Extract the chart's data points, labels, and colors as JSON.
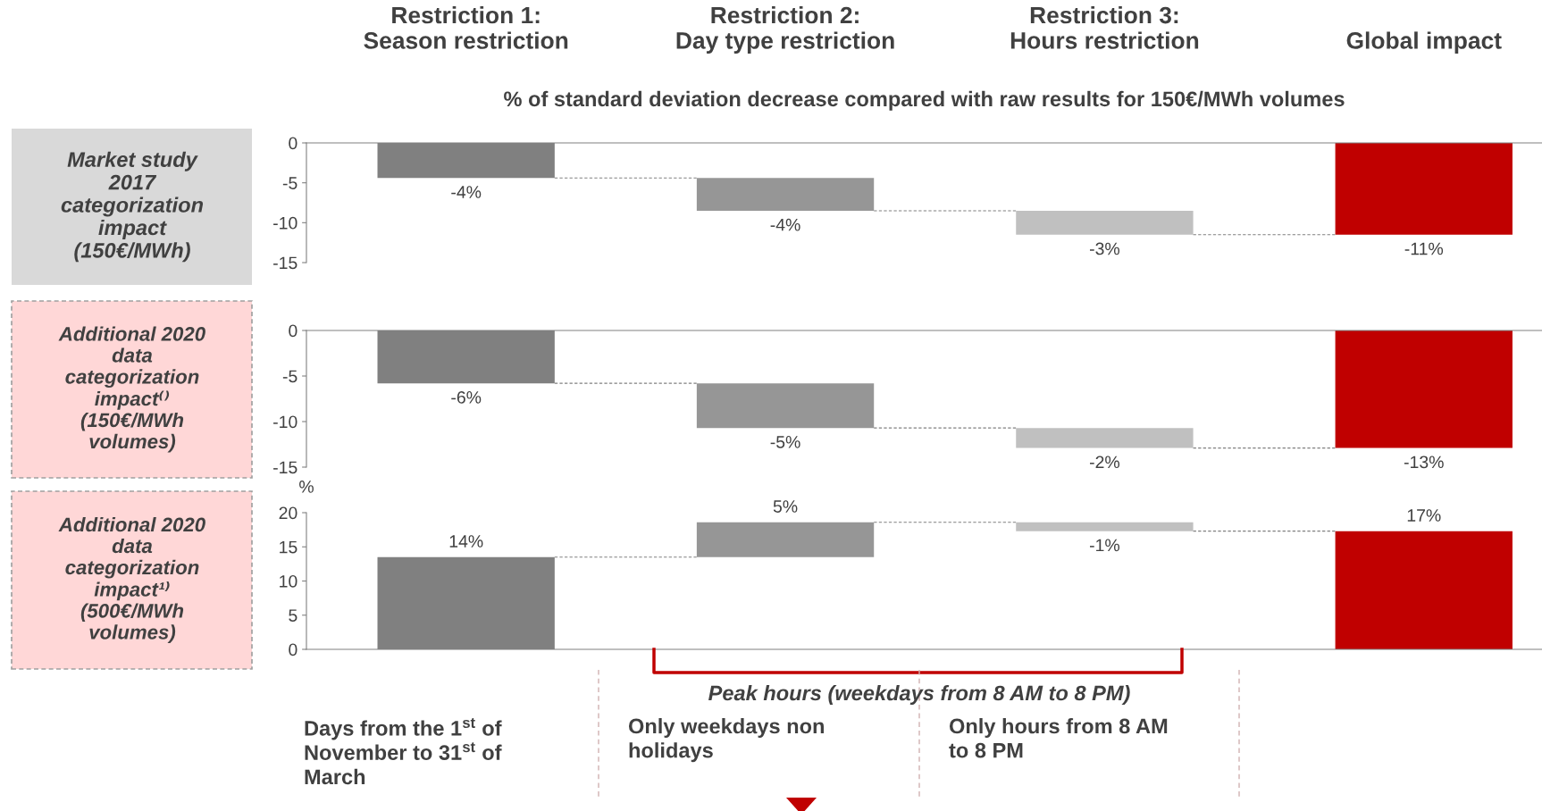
{
  "chart_data": [
    {
      "type": "bar",
      "title": "Market study\n2017\ncategorization\nimpact\n(150€/MWh)",
      "subtitle": "% of standard deviation decrease compared with raw results for 150€/MWh volumes",
      "categories": [
        "Restriction 1:\nSeason restriction",
        "Restriction 2:\nDay type restriction",
        "Restriction 3:\nHours restriction",
        "Global impact"
      ],
      "values": [
        -4.4,
        -4.1,
        -3.0,
        -11.5
      ],
      "base": [
        0,
        -4.4,
        -8.5,
        0
      ],
      "colors": [
        "#808080",
        "#969696",
        "#c0c0c0",
        "#c00000"
      ],
      "value_labels": [
        "-4%",
        "-4%",
        "-3%",
        "-11%"
      ],
      "ylim": [
        -15,
        0
      ],
      "yticks": [
        0,
        -5,
        -10,
        -15
      ]
    },
    {
      "type": "bar",
      "title": "Additional 2020\ndata\ncategorization\nimpact⁽⁾\n(150€/MWh\nvolumes)",
      "categories": [
        null,
        null,
        null,
        null
      ],
      "values": [
        -5.8,
        -4.9,
        -2.2,
        -12.9
      ],
      "base": [
        0,
        -5.8,
        -10.7,
        0
      ],
      "colors": [
        "#808080",
        "#969696",
        "#c0c0c0",
        "#c00000"
      ],
      "value_labels": [
        "-6%",
        "-5%",
        "-2%",
        "-13%"
      ],
      "ylim": [
        -15,
        0
      ],
      "yticks": [
        0,
        -5,
        -10,
        -15
      ],
      "tick_labels": "y"
    },
    {
      "type": "bar",
      "title": "Additional 2020\ndata\ncategorization\nimpact¹⁾\n(500€/MWh\nvolumes)",
      "ylabel": "%",
      "categories": [
        null,
        null,
        null,
        null
      ],
      "values": [
        13.5,
        5.1,
        -1.3,
        17.3
      ],
      "base": [
        0,
        13.5,
        18.6,
        0
      ],
      "colors": [
        "#808080",
        "#969696",
        "#c0c0c0",
        "#c00000"
      ],
      "value_labels": [
        "14%",
        "5%",
        "-1%",
        "17%"
      ],
      "ylim": [
        0,
        20
      ],
      "yticks": [
        0,
        5,
        10,
        15,
        20
      ],
      "tick_labels": "y",
      "annotations": [
        "Peak hours (weekdays from 8 AM to 8 PM)",
        "Days from the 1$^{st}$ of\nNovember to 31$^{st}$ of\nMarch",
        "Only weekdays non\nholidays",
        "Only hours from 8 AM\nto 8 PM"
      ]
    }
  ]
}
